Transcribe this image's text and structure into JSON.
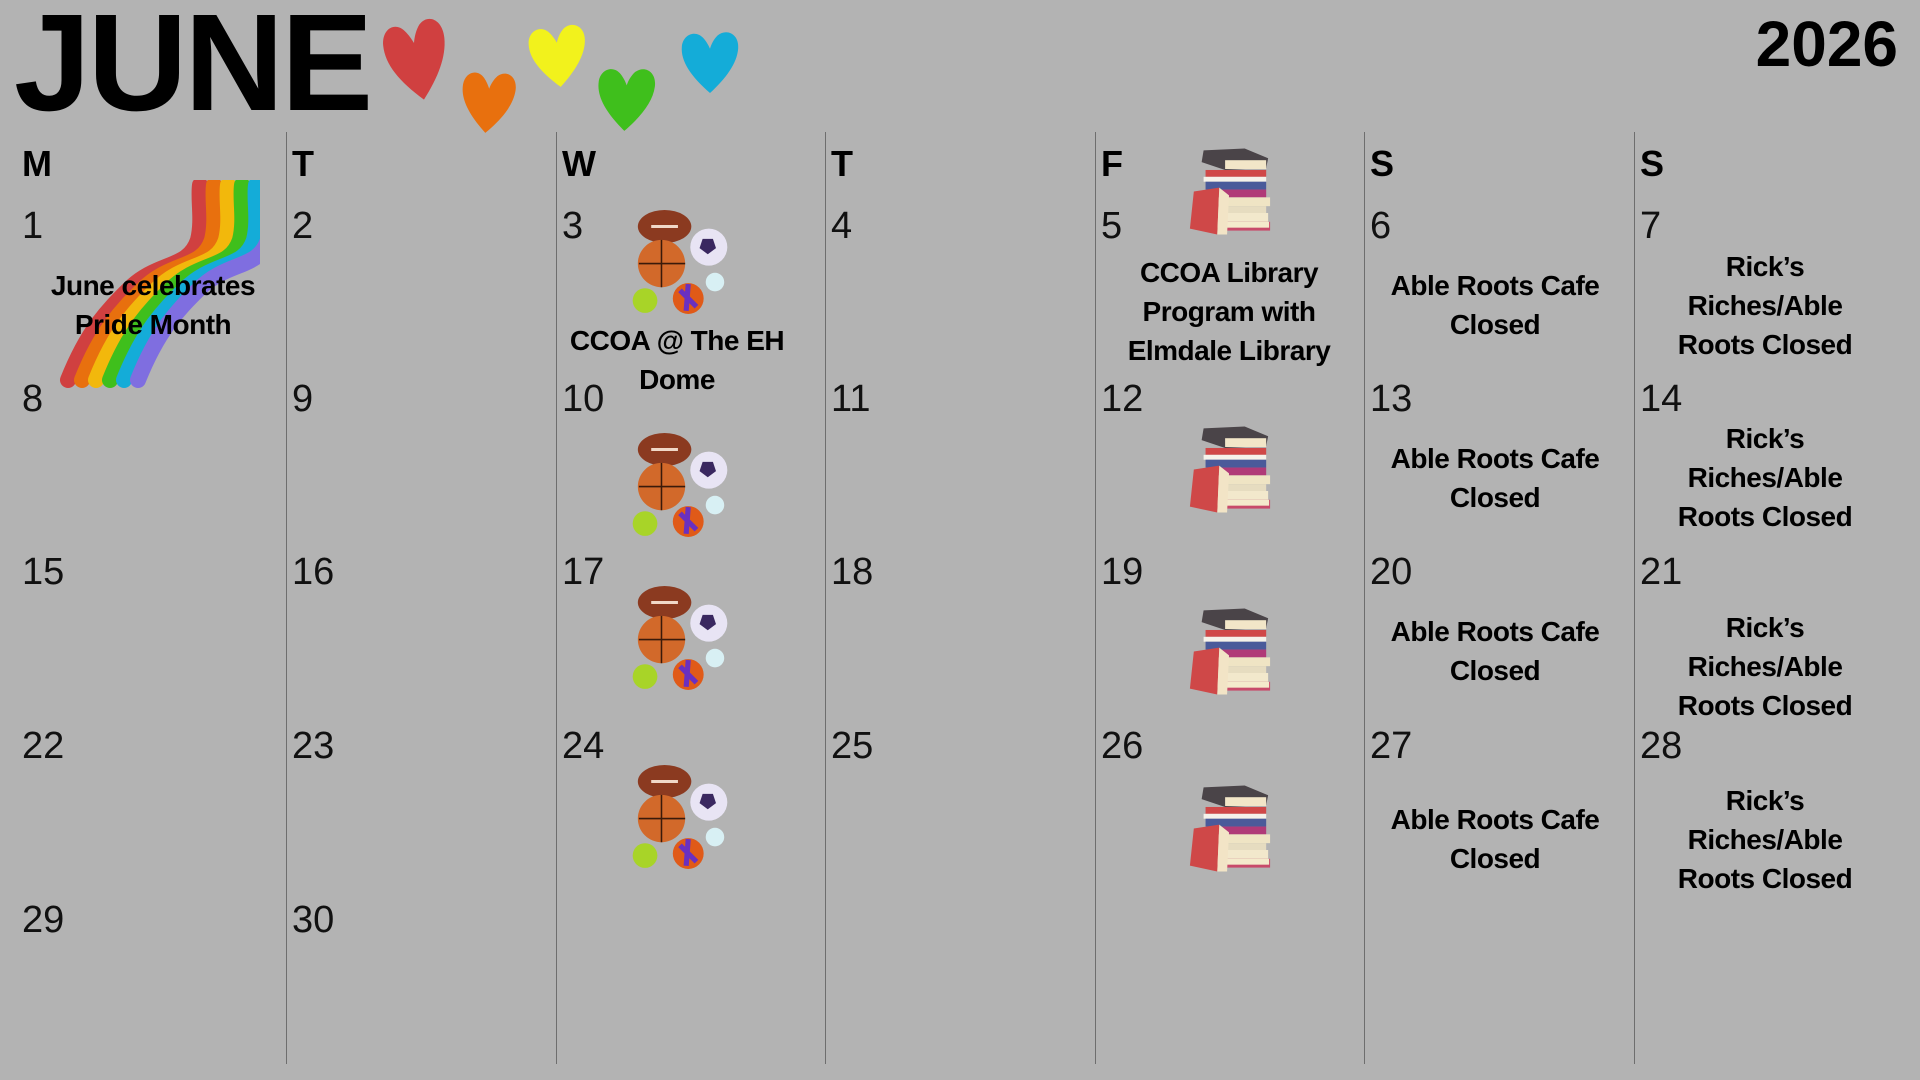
{
  "header": {
    "month": "JUNE",
    "year": "2026"
  },
  "hearts": {
    "colors": [
      "#d04040",
      "#e8700e",
      "#f2f21c",
      "#3fbf1c",
      "#14acd8"
    ],
    "icon": "heart-icon"
  },
  "weekdays": [
    "M",
    "T",
    "W",
    "T",
    "F",
    "S",
    "S"
  ],
  "weeks": [
    [
      "1",
      "2",
      "3",
      "4",
      "5",
      "6",
      "7"
    ],
    [
      "8",
      "9",
      "10",
      "11",
      "12",
      "13",
      "14"
    ],
    [
      "15",
      "16",
      "17",
      "18",
      "19",
      "20",
      "21"
    ],
    [
      "22",
      "23",
      "24",
      "25",
      "26",
      "27",
      "28"
    ],
    [
      "29",
      "30",
      "",
      "",
      "",
      "",
      ""
    ]
  ],
  "events": {
    "pride": "June celebrates Pride Month",
    "dome": "CCOA @ The EH Dome",
    "library": "CCOA Library Program with Elmdale Library",
    "cafe_6": "Able Roots Cafe Closed",
    "cafe_13": "Able Roots Cafe Closed",
    "cafe_20": "Able Roots Cafe Closed",
    "cafe_27": "Able Roots Cafe Closed",
    "ricks_7": "Rick’s Riches/Able Roots Closed",
    "ricks_14": "Rick’s Riches/Able Roots Closed",
    "ricks_21": "Rick’s Riches/Able Roots Closed",
    "ricks_28": "Rick’s Riches/Able Roots Closed"
  },
  "icons": {
    "rainbow": "rainbow-icon",
    "sports": "sports-balls-icon",
    "books": "books-stack-icon"
  }
}
